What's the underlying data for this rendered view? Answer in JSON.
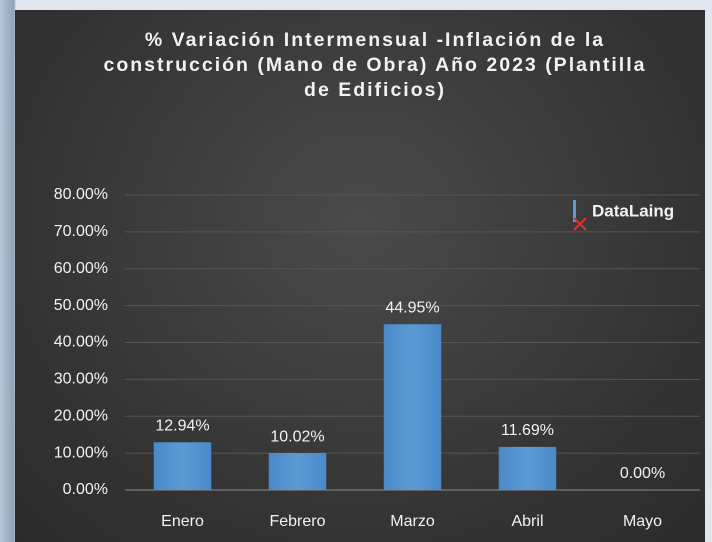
{
  "chart_data": {
    "type": "bar",
    "title": "% Variación Intermensual -Inflación de la construcción (Mano de Obra) Año 2023 (Plantilla de Edificios)",
    "logo_text": "DataLaing",
    "categories": [
      "Enero",
      "Febrero",
      "Marzo",
      "Abril",
      "Mayo"
    ],
    "values": [
      12.94,
      10.02,
      44.95,
      11.69,
      0
    ],
    "value_labels": [
      "12.94%",
      "10.02%",
      "44.95%",
      "11.69%",
      "0.00%"
    ],
    "color": "#5b9bd5",
    "ylim": [
      0,
      80
    ],
    "yticks": [
      {
        "value": 0,
        "label": "0.00%"
      },
      {
        "value": 10,
        "label": "10.00%"
      },
      {
        "value": 20,
        "label": "20.00%"
      },
      {
        "value": 30,
        "label": "30.00%"
      },
      {
        "value": 40,
        "label": "40.00%"
      },
      {
        "value": 50,
        "label": "50.00%"
      },
      {
        "value": 60,
        "label": "60.00%"
      },
      {
        "value": 70,
        "label": "70.00%"
      },
      {
        "value": 80,
        "label": "80.00%"
      }
    ],
    "grid": true
  }
}
